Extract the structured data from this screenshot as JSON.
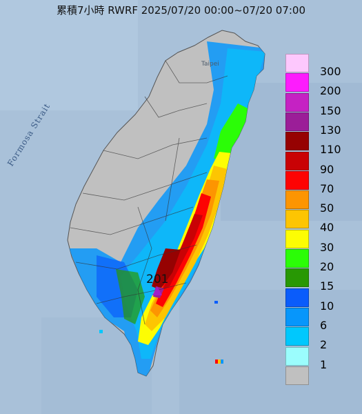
{
  "title": "累積7小時 RWRF 2025/07/20 00:00~07/20 07:00",
  "map_labels": {
    "strait": "Formosa Strait",
    "taipei": "Taipei"
  },
  "max_marker": {
    "value": "201",
    "color": "#a020c8"
  },
  "legend": [
    {
      "label": "300",
      "color": "#fdc8fd"
    },
    {
      "label": "200",
      "color": "#fd1cfd"
    },
    {
      "label": "150",
      "color": "#c522c3"
    },
    {
      "label": "130",
      "color": "#9b1e98"
    },
    {
      "label": "110",
      "color": "#960202"
    },
    {
      "label": "90",
      "color": "#c90205"
    },
    {
      "label": "70",
      "color": "#fd0303"
    },
    {
      "label": "50",
      "color": "#fd9501"
    },
    {
      "label": "40",
      "color": "#fdc502"
    },
    {
      "label": "30",
      "color": "#fdfd03"
    },
    {
      "label": "20",
      "color": "#2bfd07"
    },
    {
      "label": "15",
      "color": "#289804"
    },
    {
      "label": "10",
      "color": "#0a5cfb"
    },
    {
      "label": "6",
      "color": "#0796fb"
    },
    {
      "label": "2",
      "color": "#00c8fd"
    },
    {
      "label": "1",
      "color": "#9bfdfd"
    },
    {
      "label": "",
      "color": "#c0c0c0"
    }
  ]
}
